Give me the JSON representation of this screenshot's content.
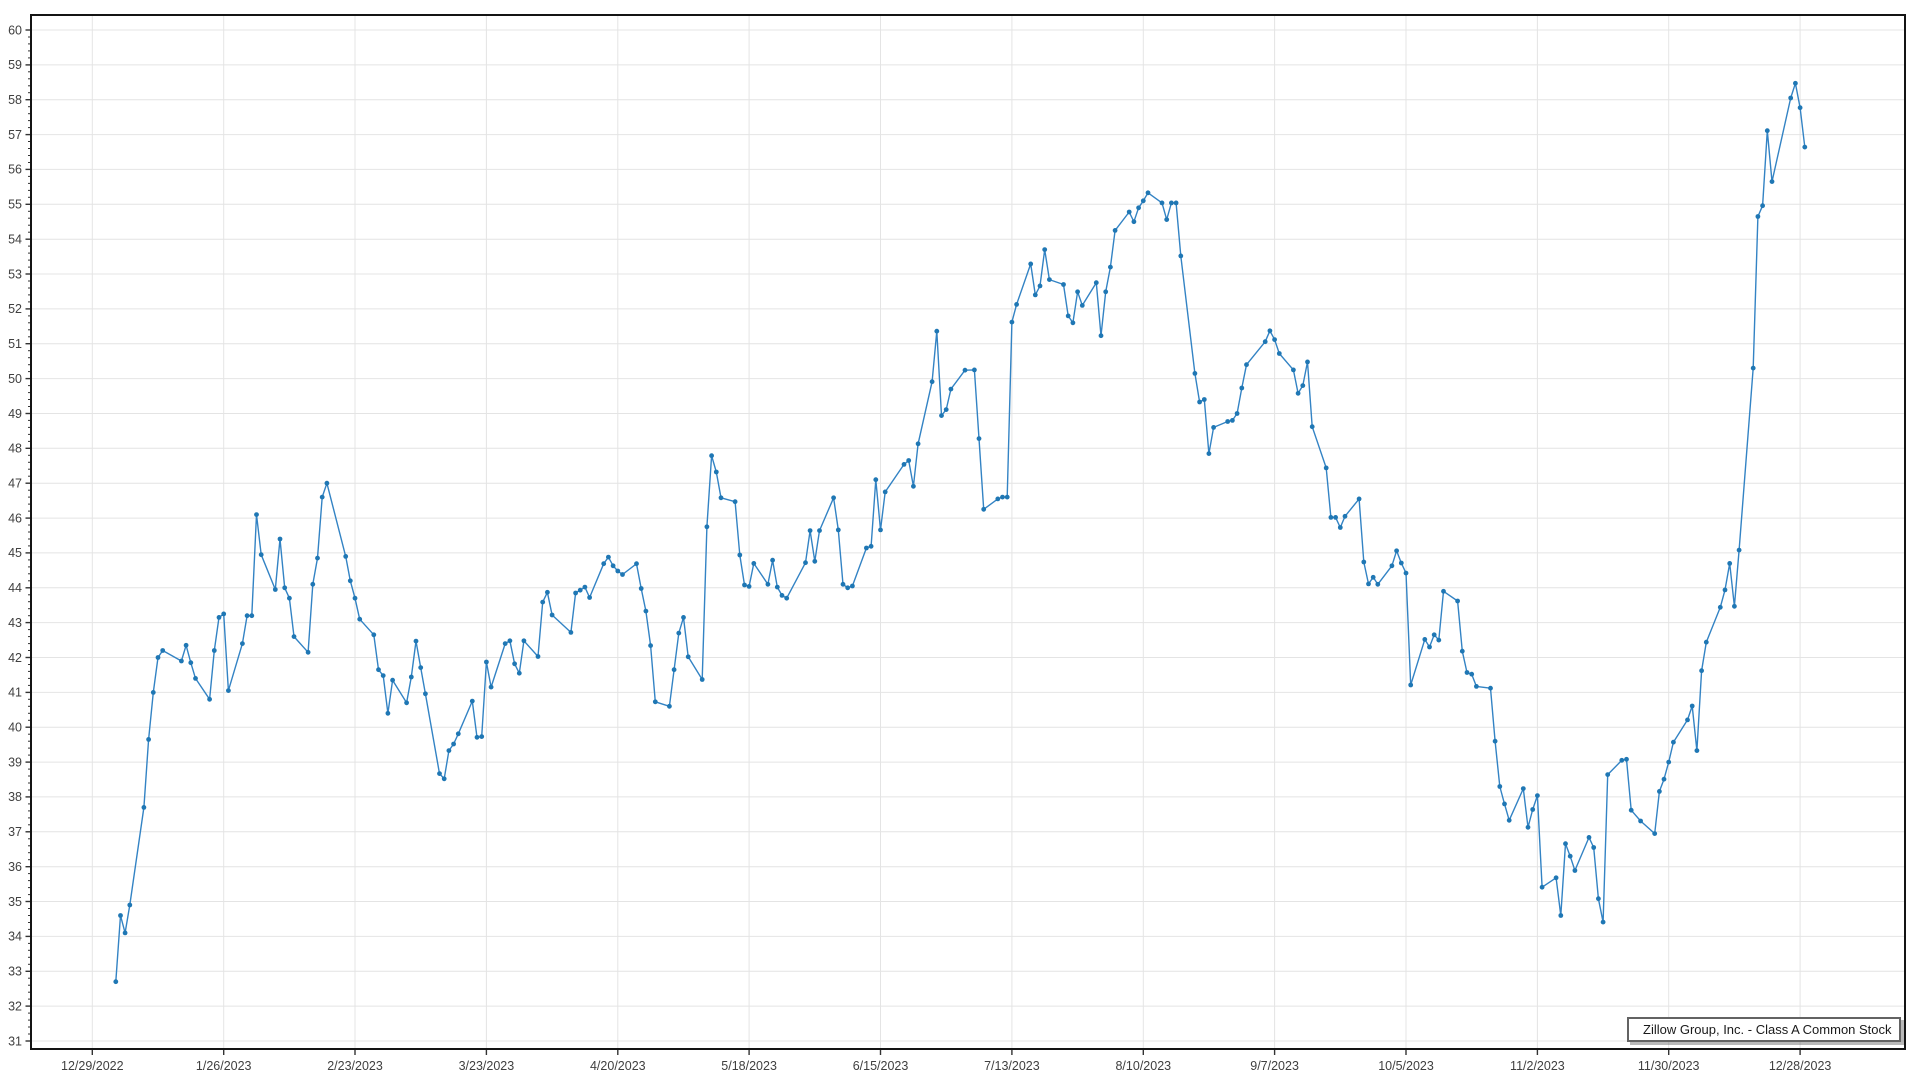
{
  "window": {
    "background": "#ffffff"
  },
  "legend": {
    "label": "Zillow Group, Inc. - Class A Common Stock"
  },
  "colors": {
    "line": "#3383c4",
    "marker": "#1f77b4",
    "grid": "#e4e4e4",
    "plot_border": "#141414",
    "tick": "#333333",
    "axis_label": "#404040",
    "legend_border": "#636363",
    "legend_text": "#1a1a1a"
  },
  "chart_data": {
    "type": "line",
    "title": "",
    "xlabel": "",
    "ylabel": "",
    "grid": true,
    "legend_position": "bottom-right",
    "x_start_date": "2022-12-29",
    "x_tick_interval_days": 28,
    "x_tick_labels": [
      "12/29/2022",
      "1/26/2023",
      "2/23/2023",
      "3/23/2023",
      "4/20/2023",
      "5/18/2023",
      "6/15/2023",
      "7/13/2023",
      "8/10/2023",
      "9/7/2023",
      "10/5/2023",
      "11/2/2023",
      "11/30/2023",
      "12/28/2023"
    ],
    "ylim": [
      30.77,
      60.43
    ],
    "y_tick_min": 31,
    "y_tick_max": 60,
    "y_tick_step": 1,
    "y_minor_tick_step": 0.2,
    "series": [
      {
        "name": "Zillow Group, Inc. - Class A Common Stock",
        "dates": [
          "2023-01-03",
          "2023-01-04",
          "2023-01-05",
          "2023-01-06",
          "2023-01-09",
          "2023-01-10",
          "2023-01-11",
          "2023-01-12",
          "2023-01-13",
          "2023-01-17",
          "2023-01-18",
          "2023-01-19",
          "2023-01-20",
          "2023-01-23",
          "2023-01-24",
          "2023-01-25",
          "2023-01-26",
          "2023-01-27",
          "2023-01-30",
          "2023-01-31",
          "2023-02-01",
          "2023-02-02",
          "2023-02-03",
          "2023-02-06",
          "2023-02-07",
          "2023-02-08",
          "2023-02-09",
          "2023-02-10",
          "2023-02-13",
          "2023-02-14",
          "2023-02-15",
          "2023-02-16",
          "2023-02-17",
          "2023-02-21",
          "2023-02-22",
          "2023-02-23",
          "2023-02-24",
          "2023-02-27",
          "2023-02-28",
          "2023-03-01",
          "2023-03-02",
          "2023-03-03",
          "2023-03-06",
          "2023-03-07",
          "2023-03-08",
          "2023-03-09",
          "2023-03-10",
          "2023-03-13",
          "2023-03-14",
          "2023-03-15",
          "2023-03-16",
          "2023-03-17",
          "2023-03-20",
          "2023-03-21",
          "2023-03-22",
          "2023-03-23",
          "2023-03-24",
          "2023-03-27",
          "2023-03-28",
          "2023-03-29",
          "2023-03-30",
          "2023-03-31",
          "2023-04-03",
          "2023-04-04",
          "2023-04-05",
          "2023-04-06",
          "2023-04-10",
          "2023-04-11",
          "2023-04-12",
          "2023-04-13",
          "2023-04-14",
          "2023-04-17",
          "2023-04-18",
          "2023-04-19",
          "2023-04-20",
          "2023-04-21",
          "2023-04-24",
          "2023-04-25",
          "2023-04-26",
          "2023-04-27",
          "2023-04-28",
          "2023-05-01",
          "2023-05-02",
          "2023-05-03",
          "2023-05-04",
          "2023-05-05",
          "2023-05-08",
          "2023-05-09",
          "2023-05-10",
          "2023-05-11",
          "2023-05-12",
          "2023-05-15",
          "2023-05-16",
          "2023-05-17",
          "2023-05-18",
          "2023-05-19",
          "2023-05-22",
          "2023-05-23",
          "2023-05-24",
          "2023-05-25",
          "2023-05-26",
          "2023-05-30",
          "2023-05-31",
          "2023-06-01",
          "2023-06-02",
          "2023-06-05",
          "2023-06-06",
          "2023-06-07",
          "2023-06-08",
          "2023-06-09",
          "2023-06-12",
          "2023-06-13",
          "2023-06-14",
          "2023-06-15",
          "2023-06-16",
          "2023-06-20",
          "2023-06-21",
          "2023-06-22",
          "2023-06-23",
          "2023-06-26",
          "2023-06-27",
          "2023-06-28",
          "2023-06-29",
          "2023-06-30",
          "2023-07-03",
          "2023-07-05",
          "2023-07-06",
          "2023-07-07",
          "2023-07-10",
          "2023-07-11",
          "2023-07-12",
          "2023-07-13",
          "2023-07-14",
          "2023-07-17",
          "2023-07-18",
          "2023-07-19",
          "2023-07-20",
          "2023-07-21",
          "2023-07-24",
          "2023-07-25",
          "2023-07-26",
          "2023-07-27",
          "2023-07-28",
          "2023-07-31",
          "2023-08-01",
          "2023-08-02",
          "2023-08-03",
          "2023-08-04",
          "2023-08-07",
          "2023-08-08",
          "2023-08-09",
          "2023-08-10",
          "2023-08-11",
          "2023-08-14",
          "2023-08-15",
          "2023-08-16",
          "2023-08-17",
          "2023-08-18",
          "2023-08-21",
          "2023-08-22",
          "2023-08-23",
          "2023-08-24",
          "2023-08-25",
          "2023-08-28",
          "2023-08-29",
          "2023-08-30",
          "2023-08-31",
          "2023-09-01",
          "2023-09-05",
          "2023-09-06",
          "2023-09-07",
          "2023-09-08",
          "2023-09-11",
          "2023-09-12",
          "2023-09-13",
          "2023-09-14",
          "2023-09-15",
          "2023-09-18",
          "2023-09-19",
          "2023-09-20",
          "2023-09-21",
          "2023-09-22",
          "2023-09-25",
          "2023-09-26",
          "2023-09-27",
          "2023-09-28",
          "2023-09-29",
          "2023-10-02",
          "2023-10-03",
          "2023-10-04",
          "2023-10-05",
          "2023-10-06",
          "2023-10-09",
          "2023-10-10",
          "2023-10-11",
          "2023-10-12",
          "2023-10-13",
          "2023-10-16",
          "2023-10-17",
          "2023-10-18",
          "2023-10-19",
          "2023-10-20",
          "2023-10-23",
          "2023-10-24",
          "2023-10-25",
          "2023-10-26",
          "2023-10-27",
          "2023-10-30",
          "2023-10-31",
          "2023-11-01",
          "2023-11-02",
          "2023-11-03",
          "2023-11-06",
          "2023-11-07",
          "2023-11-08",
          "2023-11-09",
          "2023-11-10",
          "2023-11-13",
          "2023-11-14",
          "2023-11-15",
          "2023-11-16",
          "2023-11-17",
          "2023-11-20",
          "2023-11-21",
          "2023-11-22",
          "2023-11-24",
          "2023-11-27",
          "2023-11-28",
          "2023-11-29",
          "2023-11-30",
          "2023-12-01",
          "2023-12-04",
          "2023-12-05",
          "2023-12-06",
          "2023-12-07",
          "2023-12-08",
          "2023-12-11",
          "2023-12-12",
          "2023-12-13",
          "2023-12-14",
          "2023-12-15",
          "2023-12-18",
          "2023-12-19",
          "2023-12-20",
          "2023-12-21",
          "2023-12-22",
          "2023-12-26",
          "2023-12-27",
          "2023-12-28",
          "2023-12-29"
        ],
        "values": [
          32.7,
          34.6,
          34.1,
          34.9,
          37.7,
          39.65,
          41.0,
          42.0,
          42.2,
          41.9,
          42.35,
          41.85,
          41.4,
          40.8,
          42.2,
          43.15,
          43.25,
          41.05,
          42.4,
          43.2,
          43.2,
          46.1,
          44.95,
          43.95,
          45.4,
          44.0,
          43.7,
          42.6,
          42.15,
          44.1,
          44.85,
          46.6,
          47.0,
          44.9,
          44.2,
          43.7,
          43.1,
          42.65,
          41.65,
          41.48,
          40.4,
          41.35,
          40.7,
          41.44,
          42.47,
          41.71,
          40.96,
          38.67,
          38.52,
          39.33,
          39.52,
          39.81,
          40.75,
          39.71,
          39.73,
          41.87,
          41.15,
          42.4,
          42.48,
          41.82,
          41.55,
          42.48,
          42.03,
          43.59,
          43.87,
          43.22,
          42.72,
          43.85,
          43.93,
          44.02,
          43.72,
          44.69,
          44.88,
          44.63,
          44.48,
          44.38,
          44.69,
          43.98,
          43.33,
          42.34,
          40.73,
          40.6,
          41.65,
          42.7,
          43.15,
          42.02,
          41.37,
          45.75,
          47.79,
          47.32,
          46.58,
          46.47,
          44.94,
          44.08,
          44.04,
          44.7,
          44.1,
          44.79,
          44.02,
          43.78,
          43.7,
          44.72,
          45.64,
          44.76,
          45.64,
          46.58,
          45.66,
          44.1,
          44.0,
          44.05,
          45.14,
          45.19,
          47.1,
          45.66,
          46.75,
          47.54,
          47.65,
          46.91,
          48.13,
          49.91,
          51.36,
          48.94,
          49.11,
          49.7,
          50.24,
          50.25,
          48.28,
          46.25,
          46.55,
          46.6,
          46.6,
          51.62,
          52.13,
          53.29,
          52.4,
          52.66,
          53.7,
          52.84,
          52.7,
          51.8,
          51.6,
          52.49,
          52.1,
          52.75,
          51.23,
          52.49,
          53.2,
          54.25,
          54.78,
          54.5,
          54.9,
          55.1,
          55.33,
          55.04,
          54.56,
          55.04,
          55.04,
          53.52,
          50.15,
          49.33,
          49.4,
          47.85,
          48.6,
          48.77,
          48.8,
          49.0,
          49.73,
          50.4,
          51.06,
          51.37,
          51.12,
          50.72,
          50.25,
          49.58,
          49.8,
          50.48,
          48.62,
          47.44,
          46.02,
          46.02,
          45.73,
          46.05,
          46.55,
          44.74,
          44.11,
          44.3,
          44.1,
          44.63,
          45.06,
          44.71,
          44.42,
          41.21,
          42.52,
          42.3,
          42.65,
          42.5,
          43.9,
          43.62,
          42.18,
          41.57,
          41.52,
          41.17,
          41.12,
          39.6,
          38.3,
          37.8,
          37.33,
          38.24,
          37.13,
          37.64,
          38.04,
          35.41,
          35.68,
          34.6,
          36.66,
          36.3,
          35.89,
          36.84,
          36.55,
          35.08,
          34.41,
          38.64,
          39.05,
          39.08,
          37.62,
          37.31,
          36.95,
          38.16,
          38.51,
          39.0,
          39.57,
          40.21,
          40.61,
          39.33,
          41.62,
          42.44,
          43.44,
          43.94,
          44.7,
          43.47,
          45.08,
          50.3,
          54.65,
          54.96,
          57.11,
          55.65,
          58.05,
          58.47,
          57.77,
          56.64
        ]
      }
    ]
  }
}
